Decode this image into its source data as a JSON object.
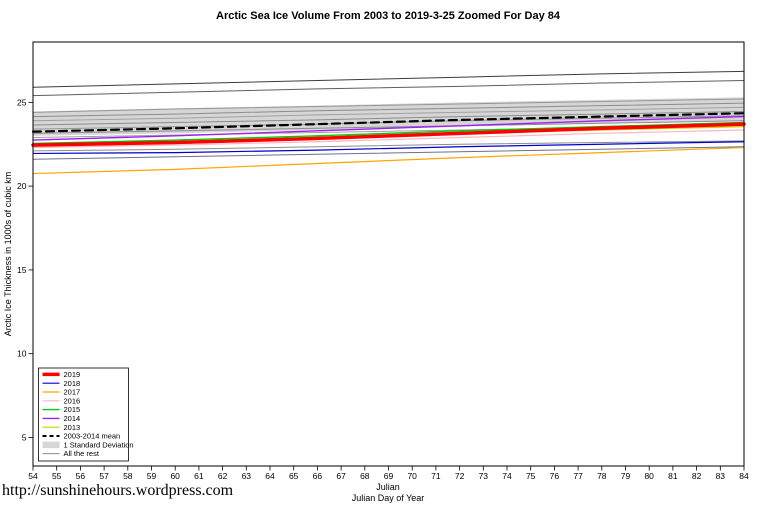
{
  "page": {
    "footer_link": "http://sunshinehours.wordpress.com"
  },
  "chart_data": {
    "type": "line",
    "title": "Arctic Sea Ice Volume From 2003 to 2019-3-25 Zoomed For Day 84",
    "ylabel": "Arctic Ice Thickness in 1000s of cubic km",
    "xlabel_line1": "Julian",
    "xlabel_line2": "Julian Day of Year",
    "grid": false,
    "legend_position": "bottom-left",
    "xlim": [
      54,
      84
    ],
    "ylim": [
      3.3,
      28.6
    ],
    "xticks": [
      54,
      55,
      56,
      57,
      58,
      59,
      60,
      61,
      62,
      63,
      64,
      65,
      66,
      67,
      68,
      69,
      70,
      71,
      72,
      73,
      74,
      75,
      76,
      77,
      78,
      79,
      80,
      81,
      82,
      83,
      84
    ],
    "yticks": [
      5,
      10,
      15,
      20,
      25
    ],
    "x": [
      54,
      60,
      66,
      72,
      78,
      84
    ],
    "band": {
      "label": "1 Standard Deviation",
      "color": "#d6d6d6",
      "upper": [
        24.45,
        24.65,
        24.8,
        25.0,
        25.15,
        25.3
      ],
      "lower": [
        23.0,
        23.15,
        23.35,
        23.55,
        23.75,
        23.9
      ]
    },
    "rest_label": "All the rest",
    "rest_color": "#8c8c8c",
    "rest_lines": [
      {
        "color": "#3d3d3d",
        "values": [
          25.9,
          26.1,
          26.3,
          26.5,
          26.7,
          26.85
        ]
      },
      {
        "color": "#5e5e5e",
        "values": [
          25.4,
          25.6,
          25.8,
          25.95,
          26.15,
          26.3
        ]
      },
      {
        "color": "#969696",
        "values": [
          24.4,
          24.6,
          24.75,
          24.9,
          25.05,
          25.2
        ]
      },
      {
        "color": "#8c8c8c",
        "values": [
          24.15,
          24.3,
          24.5,
          24.65,
          24.8,
          24.95
        ]
      },
      {
        "color": "#a0a0a0",
        "values": [
          23.9,
          24.05,
          24.25,
          24.4,
          24.55,
          24.7
        ]
      },
      {
        "color": "#8c8c8c",
        "values": [
          23.65,
          23.8,
          23.95,
          24.15,
          24.3,
          24.45
        ]
      },
      {
        "color": "#969696",
        "values": [
          23.4,
          23.55,
          23.7,
          23.9,
          24.05,
          24.2
        ]
      },
      {
        "color": "#8c8c8c",
        "values": [
          23.15,
          23.3,
          23.45,
          23.6,
          23.75,
          23.9
        ]
      },
      {
        "color": "#a0a0a0",
        "values": [
          22.9,
          23.05,
          23.2,
          23.35,
          23.5,
          23.65
        ]
      },
      {
        "color": "#8c8c8c",
        "values": [
          22.1,
          22.2,
          22.35,
          22.5,
          22.6,
          22.7
        ]
      },
      {
        "color": "#6e6e8e",
        "values": [
          21.6,
          21.75,
          21.9,
          22.05,
          22.2,
          22.35
        ]
      }
    ],
    "series": [
      {
        "name": "2019",
        "color": "#ff0000",
        "width": 3.5,
        "dash": "",
        "values": [
          22.45,
          22.6,
          22.85,
          23.15,
          23.45,
          23.7
        ]
      },
      {
        "name": "2018",
        "color": "#0000cd",
        "width": 1.2,
        "dash": "",
        "values": [
          21.95,
          22.0,
          22.15,
          22.35,
          22.5,
          22.65
        ]
      },
      {
        "name": "2017",
        "color": "#ffa500",
        "width": 1.2,
        "dash": "",
        "values": [
          20.75,
          21.0,
          21.35,
          21.7,
          22.0,
          22.3
        ]
      },
      {
        "name": "2016",
        "color": "#ffb6c1",
        "width": 1.2,
        "dash": "",
        "values": [
          22.3,
          22.45,
          22.65,
          22.9,
          23.15,
          23.35
        ]
      },
      {
        "name": "2015",
        "color": "#00cd00",
        "width": 1.4,
        "dash": "",
        "values": [
          22.55,
          22.75,
          23.0,
          23.3,
          23.55,
          23.8
        ]
      },
      {
        "name": "2014",
        "color": "#a020f0",
        "width": 1.4,
        "dash": "",
        "values": [
          22.75,
          23.0,
          23.3,
          23.6,
          23.9,
          24.15
        ]
      },
      {
        "name": "2013",
        "color": "#cdcd00",
        "width": 1.2,
        "dash": "",
        "values": [
          22.5,
          22.65,
          22.9,
          23.15,
          23.35,
          23.55
        ]
      },
      {
        "name": "2003-2014 mean",
        "color": "#000000",
        "width": 2.2,
        "dash": "8,5",
        "values": [
          23.25,
          23.45,
          23.7,
          23.95,
          24.15,
          24.35
        ]
      }
    ],
    "legend": [
      {
        "label": "2019",
        "swatch": "line",
        "color": "#ff0000",
        "width": 3.5
      },
      {
        "label": "2018",
        "swatch": "line",
        "color": "#0000cd",
        "width": 1.2
      },
      {
        "label": "2017",
        "swatch": "line",
        "color": "#ffa500",
        "width": 1.2
      },
      {
        "label": "2016",
        "swatch": "line",
        "color": "#ffb6c1",
        "width": 1.2
      },
      {
        "label": "2015",
        "swatch": "line",
        "color": "#00cd00",
        "width": 1.4
      },
      {
        "label": "2014",
        "swatch": "line",
        "color": "#a020f0",
        "width": 1.4
      },
      {
        "label": "2013",
        "swatch": "line",
        "color": "#cdcd00",
        "width": 1.2
      },
      {
        "label": "2003-2014 mean",
        "swatch": "dashed-line",
        "color": "#000000",
        "width": 2
      },
      {
        "label": "1 Standard Deviation",
        "swatch": "box",
        "color": "#d6d6d6"
      },
      {
        "label": "All the rest",
        "swatch": "line",
        "color": "#8c8c8c",
        "width": 1
      }
    ]
  }
}
